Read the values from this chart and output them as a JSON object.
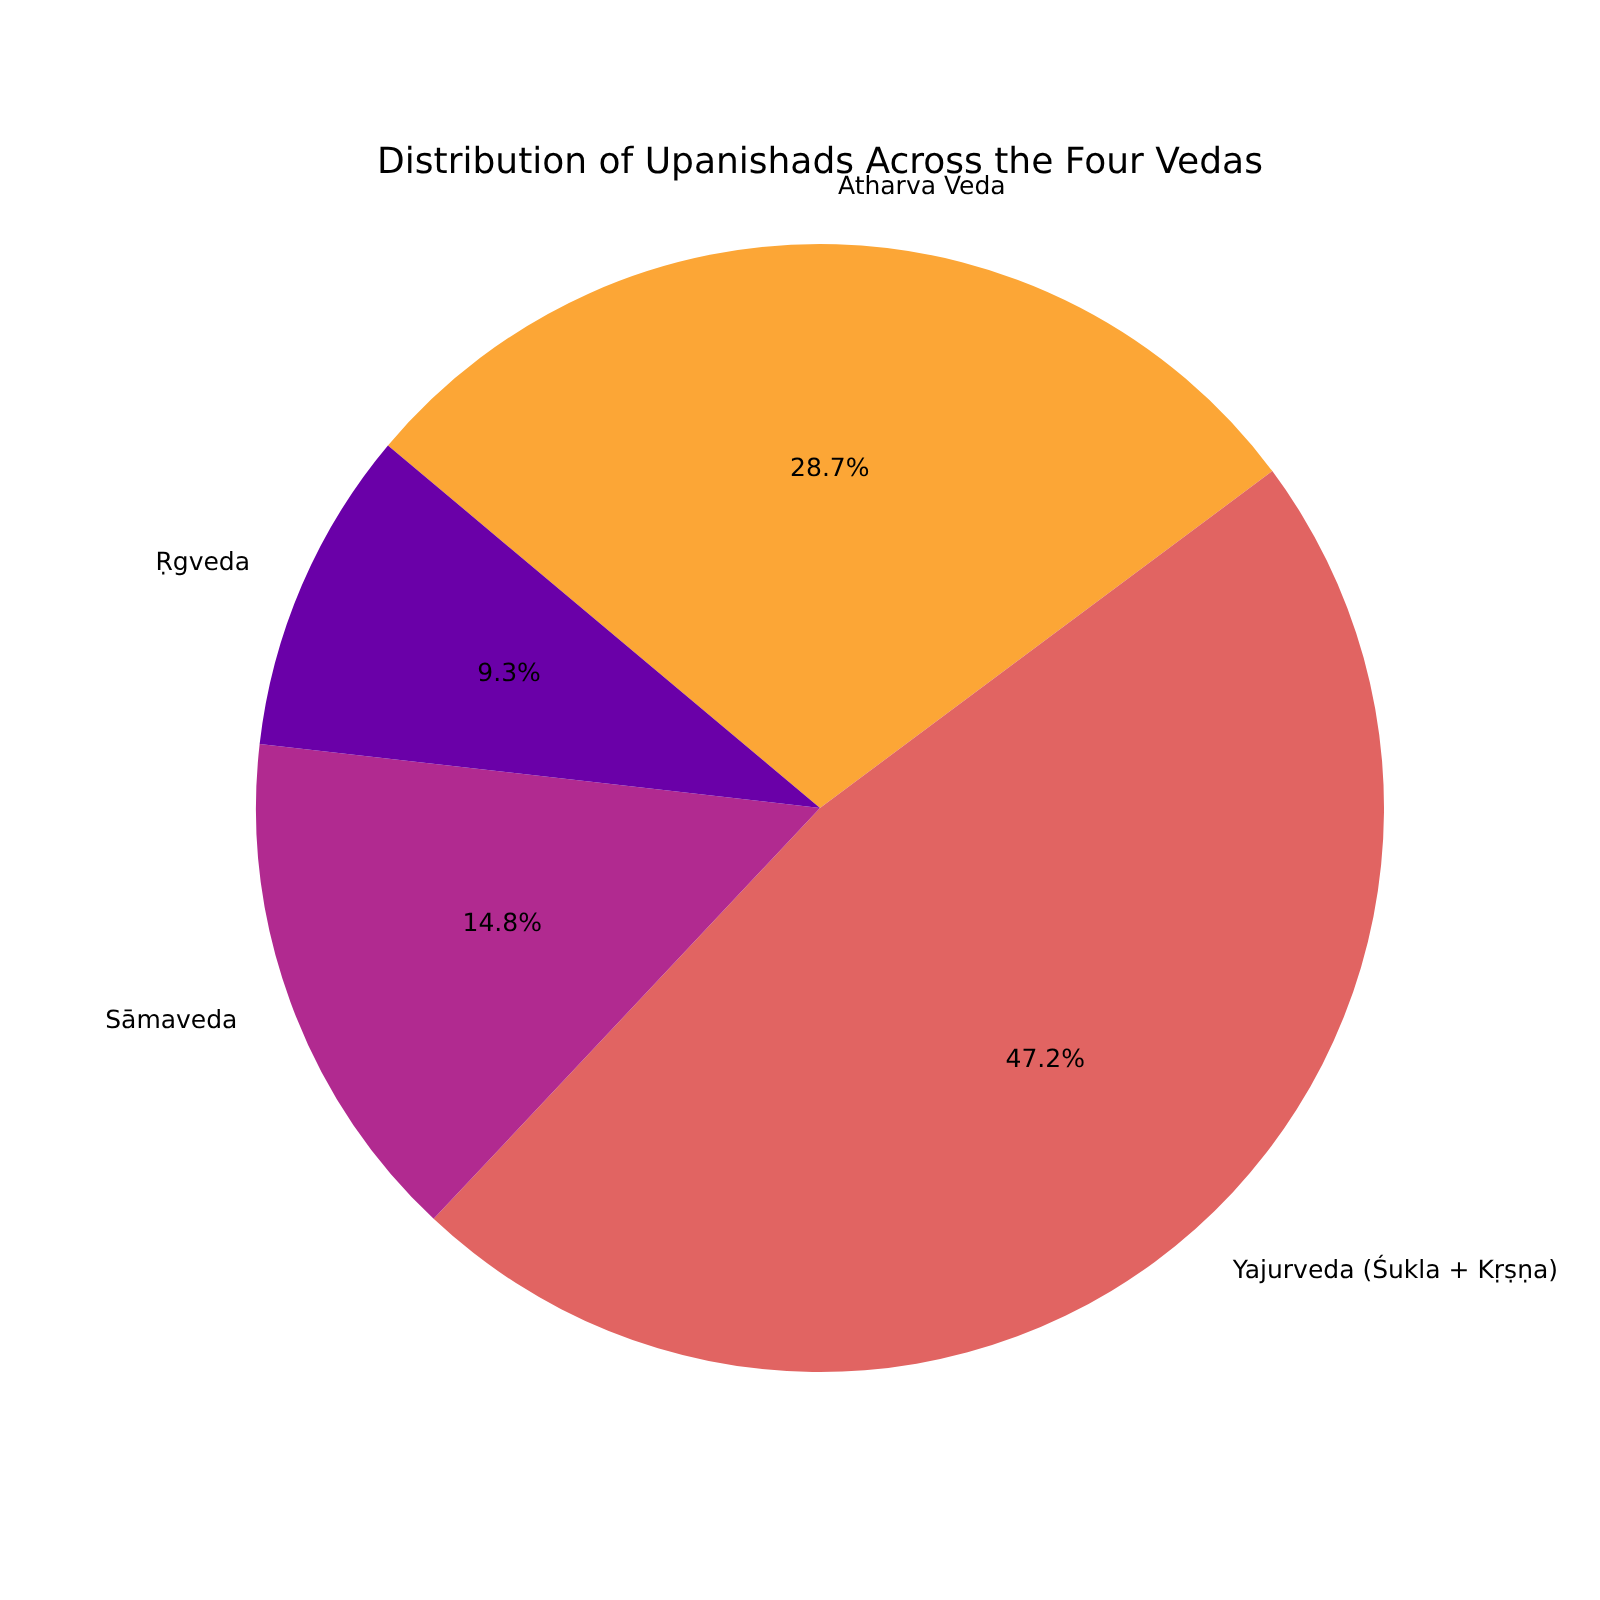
{
  "chart_data": {
    "type": "pie",
    "title": "Distribution of Upanishads Across the Four Vedas",
    "categories": [
      "Atharva Veda",
      "Yajurveda (Śukla + Kṛṣṇa)",
      "Sāmaveda",
      "Ṛgveda"
    ],
    "values": [
      28.7,
      47.2,
      14.8,
      9.3
    ],
    "colors": [
      "#fca636",
      "#e16462",
      "#b12a90",
      "#6a00a8"
    ],
    "value_labels": [
      "28.7%",
      "47.2%",
      "14.8%",
      "9.3%"
    ],
    "legend": false
  }
}
